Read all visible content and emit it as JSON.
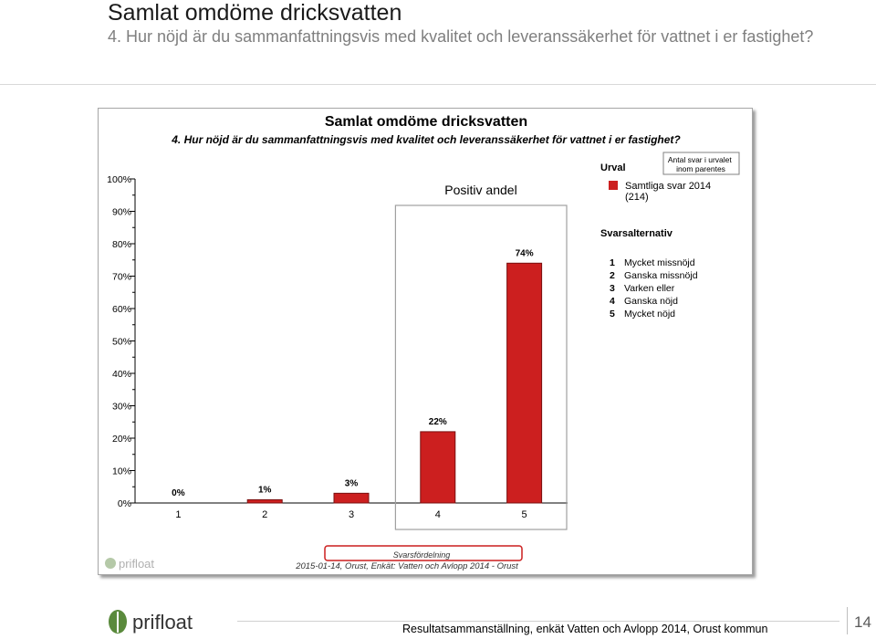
{
  "slide": {
    "title": "Samlat omdöme dricksvatten",
    "subtitle": "4. Hur nöjd är du sammanfattningsvis med kvalitet och leveranssäkerhet för vattnet i er fastighet?",
    "footer_text": "Resultatsammanställning, enkät Vatten och Avlopp 2014, Orust kommun",
    "page_number": "14",
    "logo_text": "prifloat"
  },
  "chart_panel": {
    "logo_text": "prifloat",
    "positive_label": "Positiv andel",
    "sample_note": "Antal svar i urvalet inom parentes",
    "urval_heading": "Urval",
    "urval_item": "Samtliga svar 2014",
    "urval_count": "(214)",
    "options_heading": "Svarsalternativ",
    "options": [
      {
        "num": "1",
        "label": "Mycket missnöjd"
      },
      {
        "num": "2",
        "label": "Ganska missnöjd"
      },
      {
        "num": "3",
        "label": "Varken eller"
      },
      {
        "num": "4",
        "label": "Ganska nöjd"
      },
      {
        "num": "5",
        "label": "Mycket nöjd"
      }
    ],
    "distribution_label": "Svarsfördelning",
    "source_line": "2015-01-14, Orust, Enkät: Vatten och Avlopp 2014 - Orust"
  },
  "chart_data": {
    "type": "bar",
    "title": "Samlat omdöme dricksvatten",
    "subtitle": "4. Hur nöjd är du sammanfattningsvis med kvalitet och leveranssäkerhet för vattnet i er fastighet?",
    "categories": [
      "1",
      "2",
      "3",
      "4",
      "5"
    ],
    "values": [
      0,
      1,
      3,
      22,
      74
    ],
    "value_labels": [
      "0%",
      "1%",
      "3%",
      "22%",
      "74%"
    ],
    "series": [
      {
        "name": "Samtliga svar 2014",
        "values": [
          0,
          1,
          3,
          22,
          74
        ]
      }
    ],
    "ylim": [
      0,
      100
    ],
    "yticks": [
      "0%",
      "10%",
      "20%",
      "30%",
      "40%",
      "50%",
      "60%",
      "70%",
      "80%",
      "90%",
      "100%"
    ],
    "xlabel": "",
    "ylabel": "",
    "bar_color": "#cc1f1f",
    "highlight_categories": [
      "4",
      "5"
    ],
    "grid": false,
    "legend_position": "right"
  }
}
